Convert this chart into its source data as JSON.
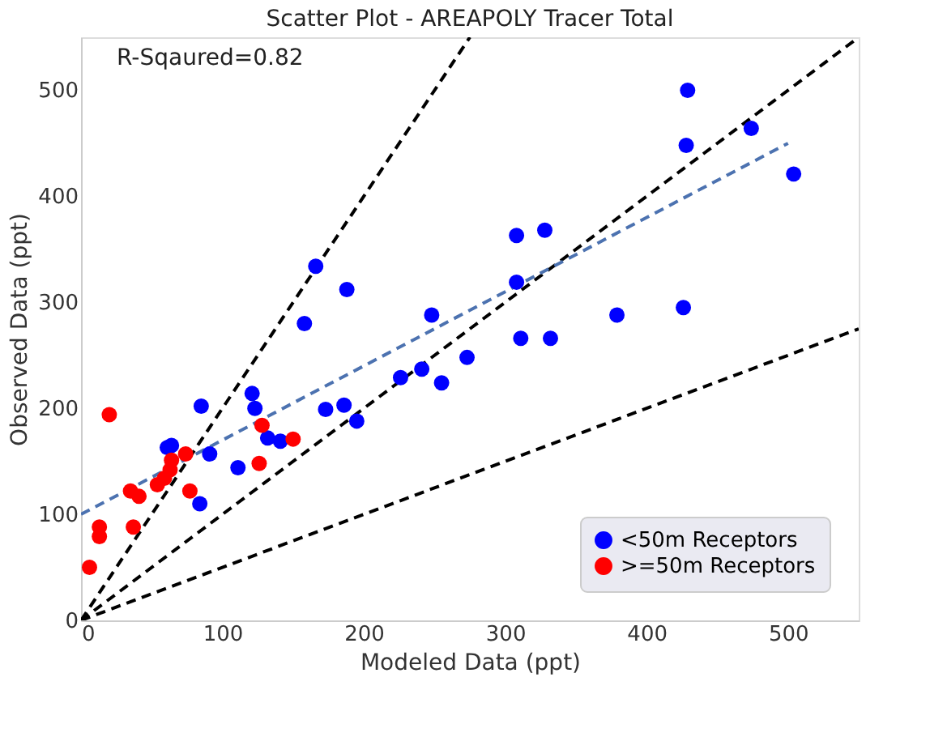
{
  "chart_data": {
    "type": "scatter",
    "title": "Scatter Plot - AREAPOLY Tracer Total",
    "xlabel": "Modeled Data (ppt)",
    "ylabel": "Observed Data (ppt)",
    "xlim": [
      0,
      550
    ],
    "ylim": [
      0,
      550
    ],
    "xticks": [
      0,
      100,
      200,
      300,
      400,
      500
    ],
    "yticks": [
      0,
      100,
      200,
      300,
      400,
      500
    ],
    "grid": false,
    "legend": "bottom right",
    "marker": "circle",
    "annotations": [
      "R-Sqaured=0.82"
    ],
    "series": [
      {
        "type": "line",
        "marker": "none",
        "color": "#000000",
        "line_style": "dashed",
        "x": [
          0,
          275
        ],
        "values": [
          0,
          550
        ]
      },
      {
        "type": "line",
        "marker": "none",
        "color": "#000000",
        "line_style": "dashed",
        "x": [
          0,
          550
        ],
        "values": [
          0,
          550
        ]
      },
      {
        "type": "line",
        "marker": "none",
        "color": "#000000",
        "line_style": "dashed",
        "x": [
          0,
          550
        ],
        "values": [
          0,
          275
        ]
      },
      {
        "type": "line",
        "marker": "none",
        "color": "#4c72b0",
        "line_style": "dashed",
        "x": [
          0,
          500
        ],
        "values": [
          100,
          450
        ]
      },
      {
        "name": "<50m Receptors",
        "color": "#0000ff",
        "x": [
          166,
          188,
          158,
          121,
          123,
          85,
          173,
          186,
          195,
          132,
          141,
          91,
          111,
          61,
          64,
          84,
          226,
          241,
          255,
          273,
          248,
          308,
          328,
          308,
          311,
          332,
          379,
          426,
          429,
          428,
          474,
          504
        ],
        "values": [
          334,
          312,
          280,
          214,
          200,
          202,
          199,
          203,
          188,
          172,
          169,
          157,
          144,
          163,
          165,
          110,
          229,
          237,
          224,
          248,
          288,
          363,
          368,
          319,
          266,
          266,
          288,
          295,
          500,
          448,
          464,
          421
        ]
      },
      {
        "name": ">=50m Receptors",
        "color": "#ff0000",
        "x": [
          20,
          6,
          13,
          13,
          37,
          35,
          41,
          54,
          59,
          64,
          74,
          77,
          128,
          126,
          150,
          63
        ],
        "values": [
          194,
          50,
          88,
          79,
          88,
          122,
          117,
          128,
          134,
          151,
          157,
          122,
          184,
          148,
          171,
          142
        ]
      }
    ]
  }
}
